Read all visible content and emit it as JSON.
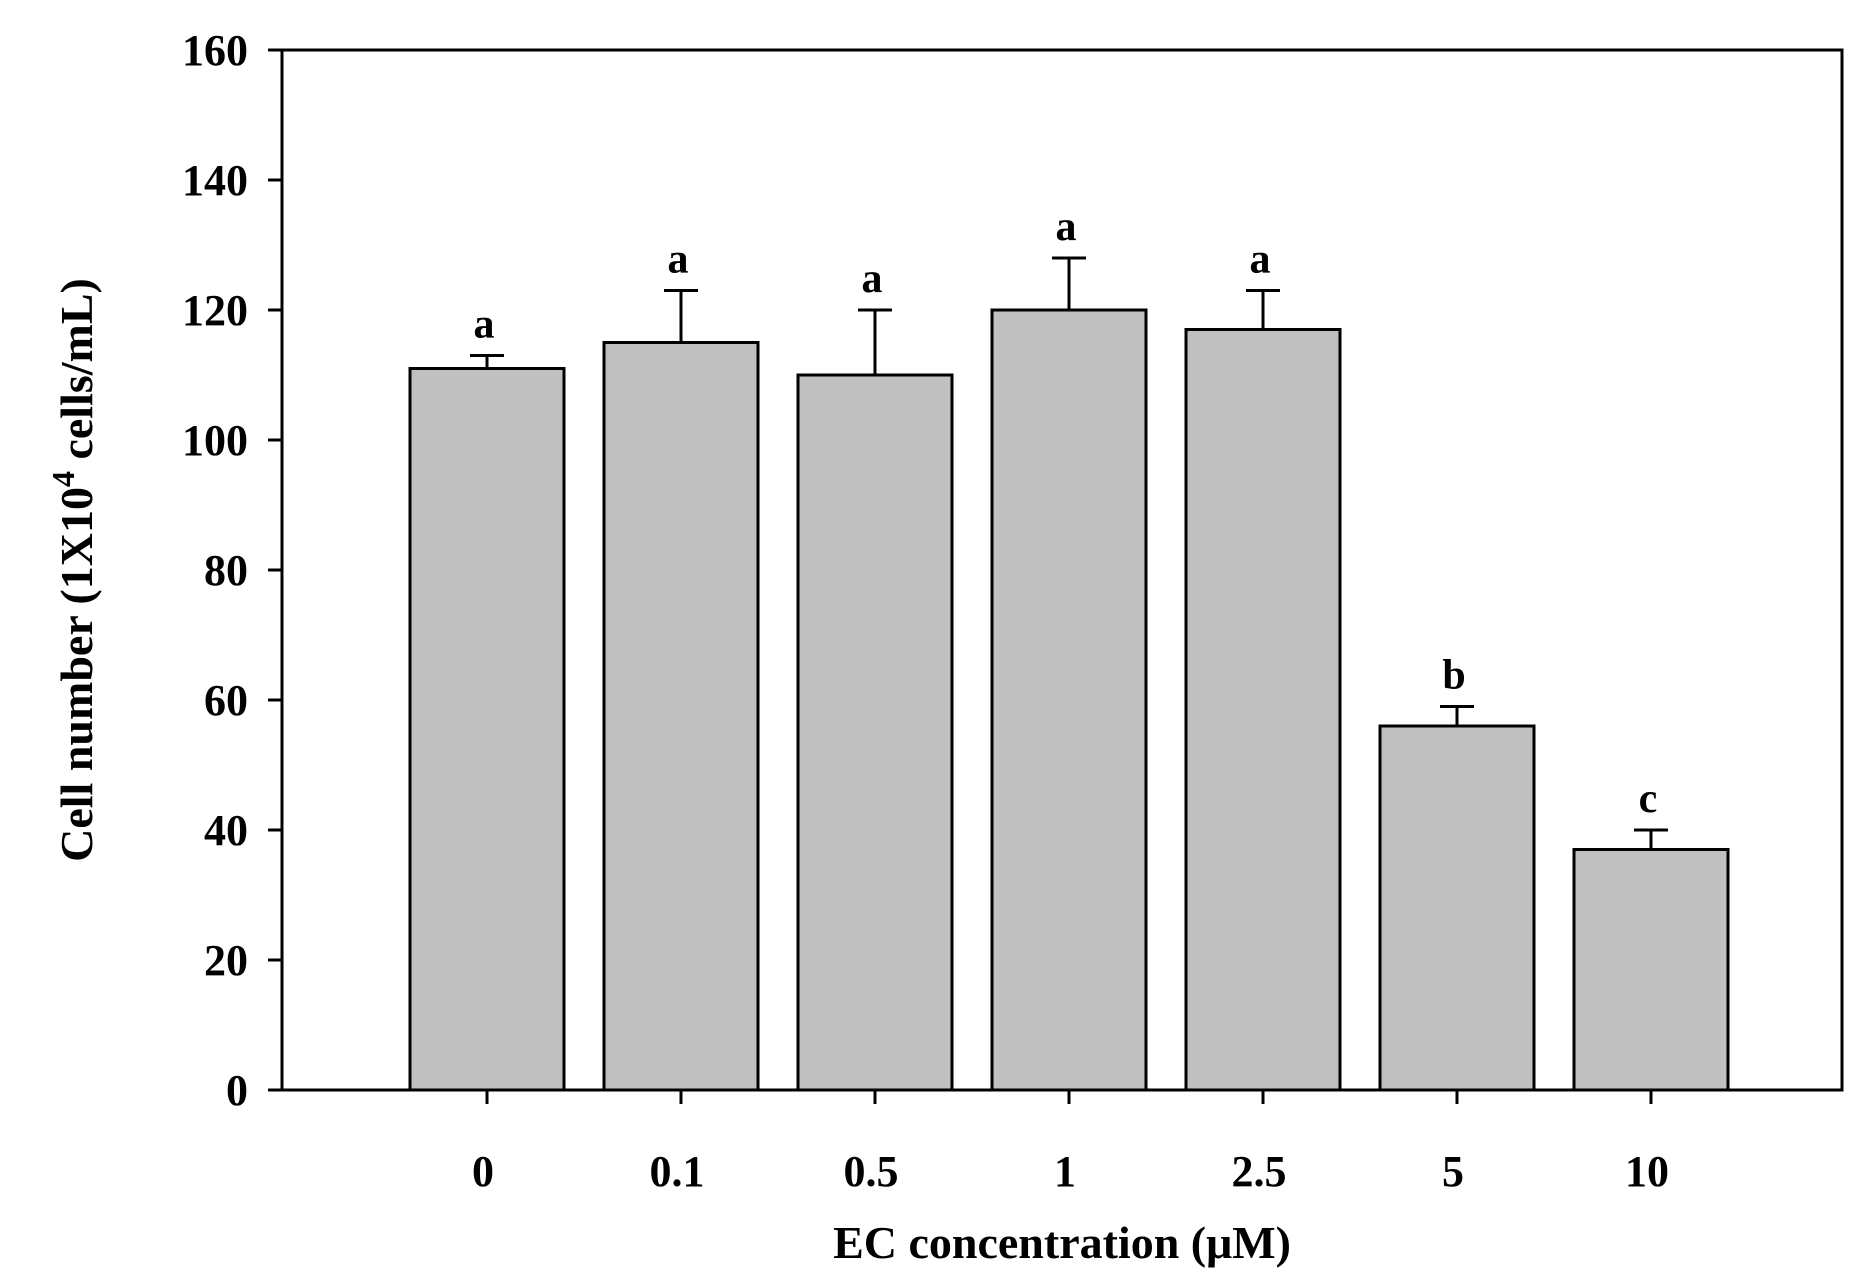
{
  "chart_data": {
    "type": "bar",
    "title": "",
    "xlabel": "EC concentration (μM)",
    "ylabel": {
      "prefix": "Cell number (1X10",
      "superscript": "4",
      "suffix": " cells/mL)"
    },
    "categories": [
      "0",
      "0.1",
      "0.5",
      "1",
      "2.5",
      "5",
      "10"
    ],
    "values": [
      111,
      115,
      110,
      120,
      117,
      56,
      37
    ],
    "errors": [
      2,
      8,
      10,
      8,
      6,
      3,
      3
    ],
    "significance": [
      "a",
      "a",
      "a",
      "a",
      "a",
      "b",
      "c"
    ],
    "ylim": [
      0,
      160
    ],
    "yticks": [
      0,
      20,
      40,
      60,
      80,
      100,
      120,
      140,
      160
    ],
    "grid": false,
    "bar_color": "#c0c0c0"
  }
}
